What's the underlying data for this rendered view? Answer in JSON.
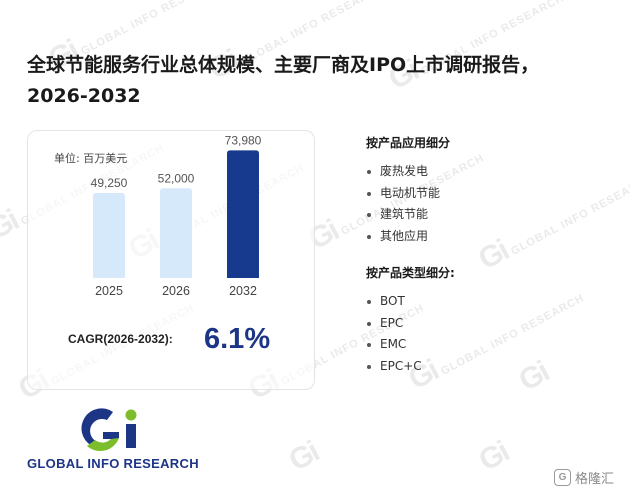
{
  "title": "全球节能服务行业总体规模、主要厂商及IPO上市调研报告，2026-2032",
  "unit_label": "单位: 百万美元",
  "chart_data": {
    "type": "bar",
    "categories": [
      "2025",
      "2026",
      "2032"
    ],
    "values": [
      49250,
      52000,
      73980
    ],
    "value_labels": [
      "49,250",
      "52,000",
      "73,980"
    ],
    "ylabel": "单位: 百万美元",
    "ylim": [
      0,
      80000
    ],
    "grid": false,
    "colors": [
      "#d6e9fb",
      "#d6e9fb",
      "#173a8e"
    ]
  },
  "cagr": {
    "label": "CAGR(2026-2032):",
    "value": "6.1%"
  },
  "segments": {
    "application": {
      "title": "按产品应用细分",
      "items": [
        "废热发电",
        "电动机节能",
        "建筑节能",
        "其他应用"
      ]
    },
    "type": {
      "title": "按产品类型细分:",
      "items": [
        "BOT",
        "EPC",
        "EMC",
        "EPC+C"
      ]
    }
  },
  "brand": {
    "logo_mark": "Gi",
    "name": "GLOBAL INFO RESEARCH",
    "primary_color": "#1c3585",
    "accent_color": "#7cbd2b",
    "watermark_text": "GLOBAL INFO RESEARCH"
  },
  "badge": {
    "icon": "gelonghui-logo-icon",
    "icon_glyph": "G",
    "text": "格隆汇"
  }
}
